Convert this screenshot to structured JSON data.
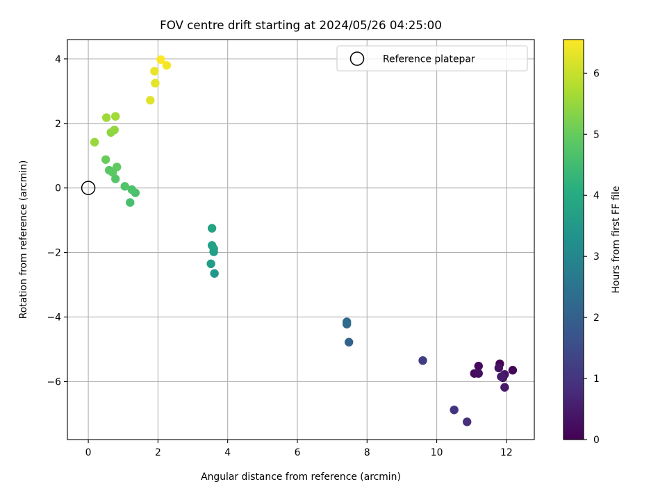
{
  "chart_data": {
    "type": "scatter",
    "title": "FOV centre drift starting at 2024/05/26 04:25:00",
    "xlabel": "Angular distance from reference (arcmin)",
    "ylabel": "Rotation from reference (arcmin)",
    "xlim": [
      -0.6,
      12.8
    ],
    "ylim": [
      -7.8,
      4.6
    ],
    "xticks": [
      0,
      2,
      4,
      6,
      8,
      10,
      12
    ],
    "yticks": [
      -6,
      -4,
      -2,
      0,
      2,
      4
    ],
    "grid": true,
    "legend": {
      "location": "top-right",
      "entries": [
        "Reference platepar"
      ]
    },
    "reference_point": {
      "x": 0,
      "y": 0,
      "label": "Reference platepar"
    },
    "colorbar": {
      "label": "Hours from first FF file",
      "colormap": "viridis",
      "range": [
        0,
        6.55
      ],
      "ticks": [
        0,
        1,
        2,
        3,
        4,
        5,
        6
      ]
    },
    "points": [
      {
        "x": 11.81,
        "y": -5.45,
        "hours": 0.05
      },
      {
        "x": 12.18,
        "y": -5.65,
        "hours": 0.1
      },
      {
        "x": 11.2,
        "y": -5.52,
        "hours": 0.15
      },
      {
        "x": 11.08,
        "y": -5.75,
        "hours": 0.2
      },
      {
        "x": 11.2,
        "y": -5.75,
        "hours": 0.25
      },
      {
        "x": 11.78,
        "y": -5.58,
        "hours": 0.3
      },
      {
        "x": 11.9,
        "y": -5.88,
        "hours": 0.35
      },
      {
        "x": 11.95,
        "y": -5.78,
        "hours": 0.4
      },
      {
        "x": 11.95,
        "y": -6.18,
        "hours": 0.45
      },
      {
        "x": 11.85,
        "y": -5.85,
        "hours": 0.5
      },
      {
        "x": 10.87,
        "y": -7.25,
        "hours": 0.9
      },
      {
        "x": 10.5,
        "y": -6.88,
        "hours": 1.0
      },
      {
        "x": 9.6,
        "y": -5.35,
        "hours": 1.2
      },
      {
        "x": 7.48,
        "y": -4.78,
        "hours": 2.1
      },
      {
        "x": 7.42,
        "y": -4.22,
        "hours": 2.25
      },
      {
        "x": 7.42,
        "y": -4.15,
        "hours": 2.3
      },
      {
        "x": 3.62,
        "y": -2.65,
        "hours": 3.5
      },
      {
        "x": 3.52,
        "y": -2.35,
        "hours": 3.6
      },
      {
        "x": 3.6,
        "y": -1.98,
        "hours": 3.65
      },
      {
        "x": 3.6,
        "y": -1.88,
        "hours": 3.7
      },
      {
        "x": 3.55,
        "y": -1.78,
        "hours": 3.75
      },
      {
        "x": 3.55,
        "y": -1.25,
        "hours": 3.8
      },
      {
        "x": 1.2,
        "y": -0.45,
        "hours": 4.6
      },
      {
        "x": 1.35,
        "y": -0.15,
        "hours": 4.65
      },
      {
        "x": 1.25,
        "y": -0.05,
        "hours": 4.7
      },
      {
        "x": 1.05,
        "y": 0.05,
        "hours": 4.75
      },
      {
        "x": 0.78,
        "y": 0.28,
        "hours": 4.8
      },
      {
        "x": 0.6,
        "y": 0.55,
        "hours": 4.85
      },
      {
        "x": 0.7,
        "y": 0.48,
        "hours": 4.9
      },
      {
        "x": 0.82,
        "y": 0.65,
        "hours": 4.95
      },
      {
        "x": 0.5,
        "y": 0.88,
        "hours": 5.05
      },
      {
        "x": 0.65,
        "y": 1.72,
        "hours": 5.45
      },
      {
        "x": 0.75,
        "y": 1.8,
        "hours": 5.5
      },
      {
        "x": 0.18,
        "y": 1.42,
        "hours": 5.55
      },
      {
        "x": 0.52,
        "y": 2.18,
        "hours": 5.6
      },
      {
        "x": 0.78,
        "y": 2.22,
        "hours": 5.65
      },
      {
        "x": 1.78,
        "y": 2.72,
        "hours": 6.25
      },
      {
        "x": 1.92,
        "y": 3.25,
        "hours": 6.3
      },
      {
        "x": 1.9,
        "y": 3.62,
        "hours": 6.35
      },
      {
        "x": 2.25,
        "y": 3.8,
        "hours": 6.45
      },
      {
        "x": 2.08,
        "y": 3.98,
        "hours": 6.55
      }
    ]
  }
}
